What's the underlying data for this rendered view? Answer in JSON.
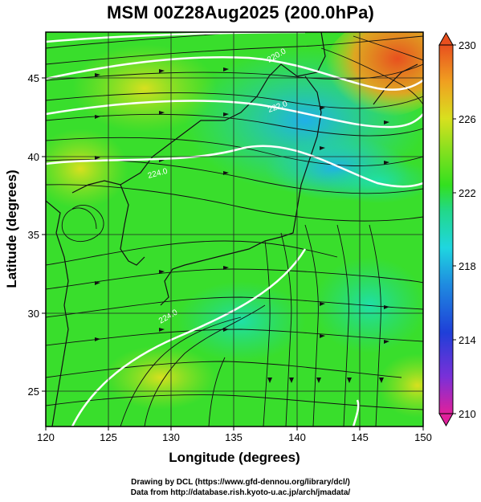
{
  "title": "MSM 00Z28Aug2025 (200.0hPa)",
  "x_axis": {
    "label": "Longitude (degrees)",
    "min": 120,
    "max": 150,
    "ticks": [
      "120",
      "125",
      "130",
      "135",
      "140",
      "145",
      "150"
    ]
  },
  "y_axis": {
    "label": "Latitude  (degrees)",
    "min": 22.4,
    "max": 47.6,
    "ticks": [
      "25",
      "30",
      "35",
      "40",
      "45"
    ]
  },
  "colorbar": {
    "min": 210,
    "max": 230,
    "labels": [
      "230",
      "226",
      "222",
      "218",
      "214",
      "210"
    ],
    "colors": [
      "#e0209b",
      "#7a30d8",
      "#1f3fd8",
      "#1f8be0",
      "#1fd6e0",
      "#22d88a",
      "#33e01f",
      "#8be01f",
      "#d8e01f",
      "#f0a020",
      "#e8501f"
    ]
  },
  "contours": [
    {
      "label": "220.0"
    },
    {
      "label": "222.0"
    },
    {
      "label": "224.0"
    },
    {
      "label": "224.0"
    }
  ],
  "credits": {
    "line1": "Drawing by DCL (https://www.gfd-dennou.org/library/dcl/)",
    "line2": "Data from http://database.rish.kyoto-u.ac.jp/arch/jmadata/"
  }
}
